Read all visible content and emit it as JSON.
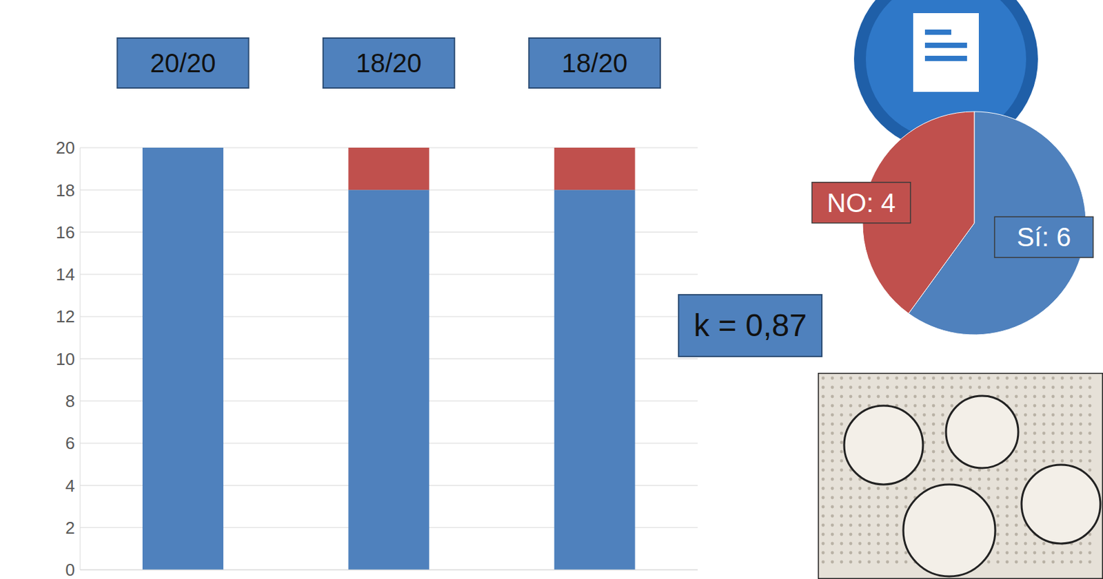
{
  "chart_data": [
    {
      "type": "bar",
      "stacked": true,
      "categories": [
        null,
        null,
        null
      ],
      "series": [
        {
          "color": "#4f81bd",
          "values": [
            20,
            18,
            18
          ]
        },
        {
          "color": "#c0504d",
          "values": [
            0,
            2,
            2
          ]
        }
      ],
      "ylim": [
        0,
        20
      ],
      "yticks": [
        0,
        2,
        4,
        6,
        8,
        10,
        12,
        14,
        16,
        18,
        20
      ],
      "grid": true,
      "tick_labels": "y",
      "annotations": [
        "20/20",
        "18/20",
        "18/20",
        "k = 0,87"
      ]
    },
    {
      "type": "pie",
      "categories": [
        "Sí",
        "NO"
      ],
      "values": [
        6,
        4
      ],
      "value_labels": [
        "Sí: 6",
        "NO: 4"
      ],
      "colors": [
        "#4f81bd",
        "#c0504d"
      ],
      "data_labels": true
    }
  ]
}
